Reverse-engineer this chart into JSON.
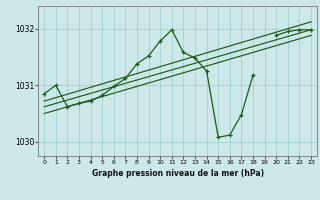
{
  "xlabel": "Graphe pression niveau de la mer (hPa)",
  "xlim": [
    -0.5,
    23.5
  ],
  "ylim": [
    1029.75,
    1032.4
  ],
  "yticks": [
    1030,
    1031,
    1032
  ],
  "xticks": [
    0,
    1,
    2,
    3,
    4,
    5,
    6,
    7,
    8,
    9,
    10,
    11,
    12,
    13,
    14,
    15,
    16,
    17,
    18,
    19,
    20,
    21,
    22,
    23
  ],
  "bg_color": "#cce8e8",
  "grid_color": "#99cccc",
  "line_color": "#1a5c1a",
  "main_y": [
    1030.85,
    1031.0,
    1030.62,
    1030.68,
    1030.72,
    1030.82,
    1030.98,
    1031.12,
    1031.38,
    1031.52,
    1031.78,
    1031.98,
    1031.58,
    1031.48,
    1031.25,
    1030.08,
    1030.12,
    1030.48,
    1031.18,
    null,
    1031.88,
    1031.95,
    1031.98,
    1031.98
  ],
  "main_x": [
    0,
    1,
    2,
    3,
    4,
    5,
    6,
    7,
    8,
    9,
    10,
    11,
    12,
    13,
    14,
    15,
    16,
    17,
    18,
    19,
    20,
    21,
    22,
    23
  ],
  "trend1_x": [
    0,
    23
  ],
  "trend1_y": [
    1030.5,
    1031.88
  ],
  "trend2_x": [
    0,
    23
  ],
  "trend2_y": [
    1030.62,
    1031.98
  ],
  "trend3_x": [
    0,
    23
  ],
  "trend3_y": [
    1030.72,
    1032.12
  ]
}
